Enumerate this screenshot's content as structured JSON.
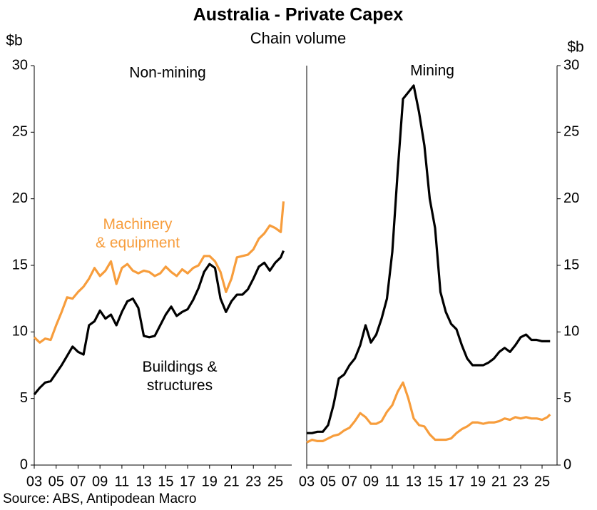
{
  "title": "Australia - Private Capex",
  "subtitle": "Chain volume",
  "source": "Source: ABS, Antipodean Macro",
  "chart_data": [
    {
      "type": "line",
      "title": "Non-mining",
      "ylabel": "$b",
      "yaxis_side": "left",
      "x": [
        2003,
        2003.5,
        2004,
        2004.5,
        2005,
        2005.5,
        2006,
        2006.5,
        2007,
        2007.5,
        2008,
        2008.5,
        2009,
        2009.5,
        2010,
        2010.5,
        2011,
        2011.5,
        2012,
        2012.5,
        2013,
        2013.5,
        2014,
        2014.5,
        2015,
        2015.5,
        2016,
        2016.5,
        2017,
        2017.5,
        2018,
        2018.5,
        2019,
        2019.5,
        2020,
        2020.5,
        2021,
        2021.5,
        2022,
        2022.5,
        2023,
        2023.5,
        2024,
        2024.5,
        2025,
        2025.5,
        2025.75
      ],
      "xlim": [
        2003,
        2026.5
      ],
      "xticks": [
        {
          "value": 2003,
          "label": "03"
        },
        {
          "value": 2005,
          "label": "05"
        },
        {
          "value": 2007,
          "label": "07"
        },
        {
          "value": 2009,
          "label": "09"
        },
        {
          "value": 2011,
          "label": "11"
        },
        {
          "value": 2013,
          "label": "13"
        },
        {
          "value": 2015,
          "label": "15"
        },
        {
          "value": 2017,
          "label": "17"
        },
        {
          "value": 2019,
          "label": "19"
        },
        {
          "value": 2021,
          "label": "21"
        },
        {
          "value": 2023,
          "label": "23"
        },
        {
          "value": 2025,
          "label": "25"
        }
      ],
      "ylim": [
        0,
        30
      ],
      "yticks": [
        0,
        5,
        10,
        15,
        20,
        25,
        30
      ],
      "series": [
        {
          "name": "Machinery\n& equipment",
          "color": "#f79d3c",
          "values": [
            9.6,
            9.2,
            9.5,
            9.4,
            10.5,
            11.5,
            12.6,
            12.5,
            13.0,
            13.4,
            14.0,
            14.8,
            14.2,
            14.6,
            15.3,
            13.6,
            14.8,
            15.1,
            14.6,
            14.4,
            14.6,
            14.5,
            14.2,
            14.4,
            14.9,
            14.5,
            14.2,
            14.7,
            14.4,
            14.8,
            15.0,
            15.7,
            15.7,
            15.3,
            14.5,
            13.0,
            14.0,
            15.6,
            15.7,
            15.8,
            16.2,
            17.0,
            17.4,
            18.0,
            17.8,
            17.5,
            19.8
          ]
        },
        {
          "name": "Buildings &\nstructures",
          "color": "#000000",
          "values": [
            5.3,
            5.8,
            6.2,
            6.3,
            6.9,
            7.5,
            8.2,
            8.9,
            8.5,
            8.3,
            10.5,
            10.8,
            11.6,
            11.0,
            11.3,
            10.5,
            11.5,
            12.3,
            12.5,
            11.8,
            9.7,
            9.6,
            9.7,
            10.5,
            11.3,
            11.9,
            11.2,
            11.5,
            11.7,
            12.4,
            13.3,
            14.5,
            15.1,
            14.8,
            12.5,
            11.5,
            12.3,
            12.8,
            12.8,
            13.2,
            14.0,
            14.9,
            15.2,
            14.6,
            15.2,
            15.6,
            16.1
          ]
        }
      ]
    },
    {
      "type": "line",
      "title": "Mining",
      "ylabel": "$b",
      "yaxis_side": "right",
      "x": [
        2003,
        2003.5,
        2004,
        2004.5,
        2005,
        2005.5,
        2006,
        2006.5,
        2007,
        2007.5,
        2008,
        2008.5,
        2009,
        2009.5,
        2010,
        2010.5,
        2011,
        2011.5,
        2012,
        2012.5,
        2013,
        2013.5,
        2014,
        2014.5,
        2015,
        2015.5,
        2016,
        2016.5,
        2017,
        2017.5,
        2018,
        2018.5,
        2019,
        2019.5,
        2020,
        2020.5,
        2021,
        2021.5,
        2022,
        2022.5,
        2023,
        2023.5,
        2024,
        2024.5,
        2025,
        2025.5,
        2025.75
      ],
      "xlim": [
        2003,
        2026.4
      ],
      "xticks": [
        {
          "value": 2003,
          "label": "03"
        },
        {
          "value": 2005,
          "label": "05"
        },
        {
          "value": 2007,
          "label": "07"
        },
        {
          "value": 2009,
          "label": "09"
        },
        {
          "value": 2011,
          "label": "11"
        },
        {
          "value": 2013,
          "label": "13"
        },
        {
          "value": 2015,
          "label": "15"
        },
        {
          "value": 2017,
          "label": "17"
        },
        {
          "value": 2019,
          "label": "19"
        },
        {
          "value": 2021,
          "label": "21"
        },
        {
          "value": 2023,
          "label": "23"
        },
        {
          "value": 2025,
          "label": "25"
        }
      ],
      "ylim": [
        0,
        30
      ],
      "yticks": [
        0,
        5,
        10,
        15,
        20,
        25,
        30
      ],
      "series": [
        {
          "color": "#f79d3c",
          "values": [
            1.7,
            1.9,
            1.8,
            1.8,
            2.0,
            2.2,
            2.3,
            2.6,
            2.8,
            3.3,
            3.9,
            3.6,
            3.1,
            3.1,
            3.3,
            4.0,
            4.5,
            5.5,
            6.2,
            5.0,
            3.5,
            3.0,
            2.9,
            2.3,
            1.9,
            1.9,
            1.9,
            2.0,
            2.4,
            2.7,
            2.9,
            3.2,
            3.2,
            3.1,
            3.2,
            3.2,
            3.3,
            3.5,
            3.4,
            3.6,
            3.5,
            3.6,
            3.5,
            3.5,
            3.4,
            3.6,
            3.8
          ]
        },
        {
          "color": "#000000",
          "values": [
            2.4,
            2.4,
            2.5,
            2.5,
            3.0,
            4.5,
            6.5,
            6.8,
            7.5,
            8.0,
            9.0,
            10.5,
            9.2,
            9.8,
            11.0,
            12.5,
            16.0,
            22.0,
            27.5,
            28.0,
            28.5,
            26.5,
            24.0,
            20.0,
            17.8,
            13.0,
            11.5,
            10.6,
            10.2,
            9.0,
            8.0,
            7.5,
            7.5,
            7.5,
            7.7,
            8.0,
            8.5,
            8.8,
            8.5,
            9.0,
            9.6,
            9.8,
            9.4,
            9.4,
            9.3,
            9.3,
            9.3
          ]
        }
      ]
    }
  ]
}
